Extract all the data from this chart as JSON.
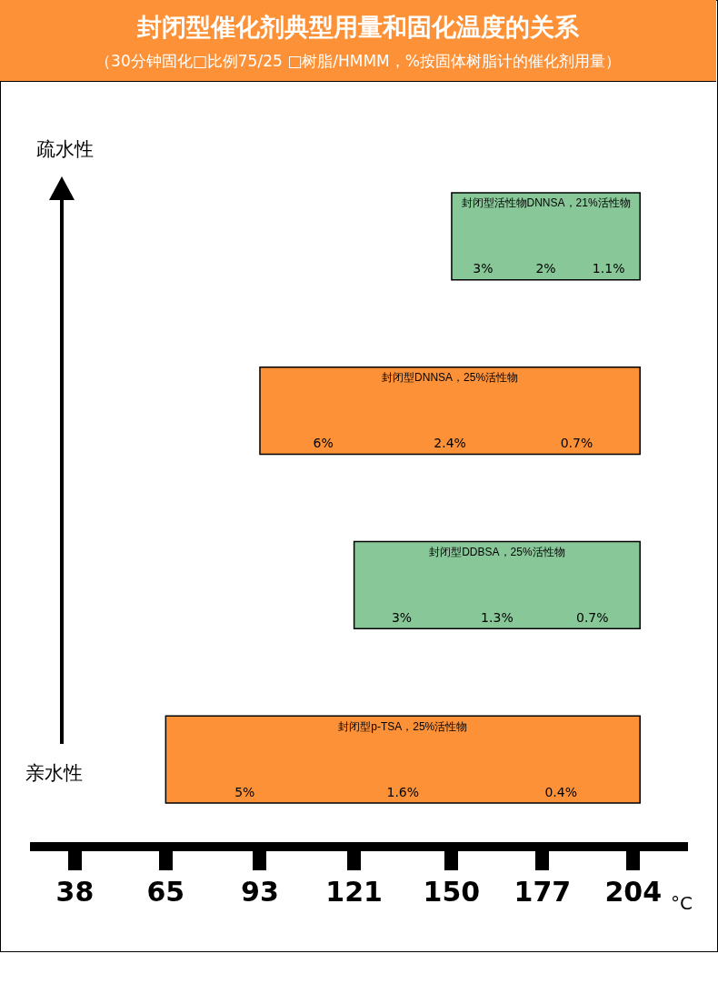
{
  "chart_data": {
    "type": "bar",
    "orientation": "horizontal",
    "title": "封闭型催化剂典型用量和固化温度的关系",
    "subtitle": "（30分钟固化□比例75/25 □树脂/HMMM，%按固体树脂计的催化剂用量）",
    "xlabel": "°C",
    "categories": [
      "封闭型活性物DNNSA，21%活性物",
      "封闭型DNNSA，25%活性物",
      "封闭型DDBSA，25%活性物",
      "封闭型p-TSA，25%活性物"
    ],
    "base": [
      150,
      93,
      121,
      65
    ],
    "values": [
      56,
      113,
      85,
      141
    ],
    "colors": [
      "#88c898",
      "#fd9137",
      "#88c898",
      "#fd9137"
    ],
    "xlim": [
      26,
      220
    ],
    "xticks": [
      38,
      65,
      93,
      121,
      150,
      177,
      204
    ],
    "tick_labels": "x",
    "grid": false,
    "legend": false,
    "annotations": [
      "疏水性",
      "亲水性",
      "3%",
      "2%",
      "1.1%",
      "6%",
      "2.4%",
      "0.7%",
      "3%",
      "1.3%",
      "0.7%",
      "5%",
      "1.6%",
      "0.4%"
    ]
  }
}
